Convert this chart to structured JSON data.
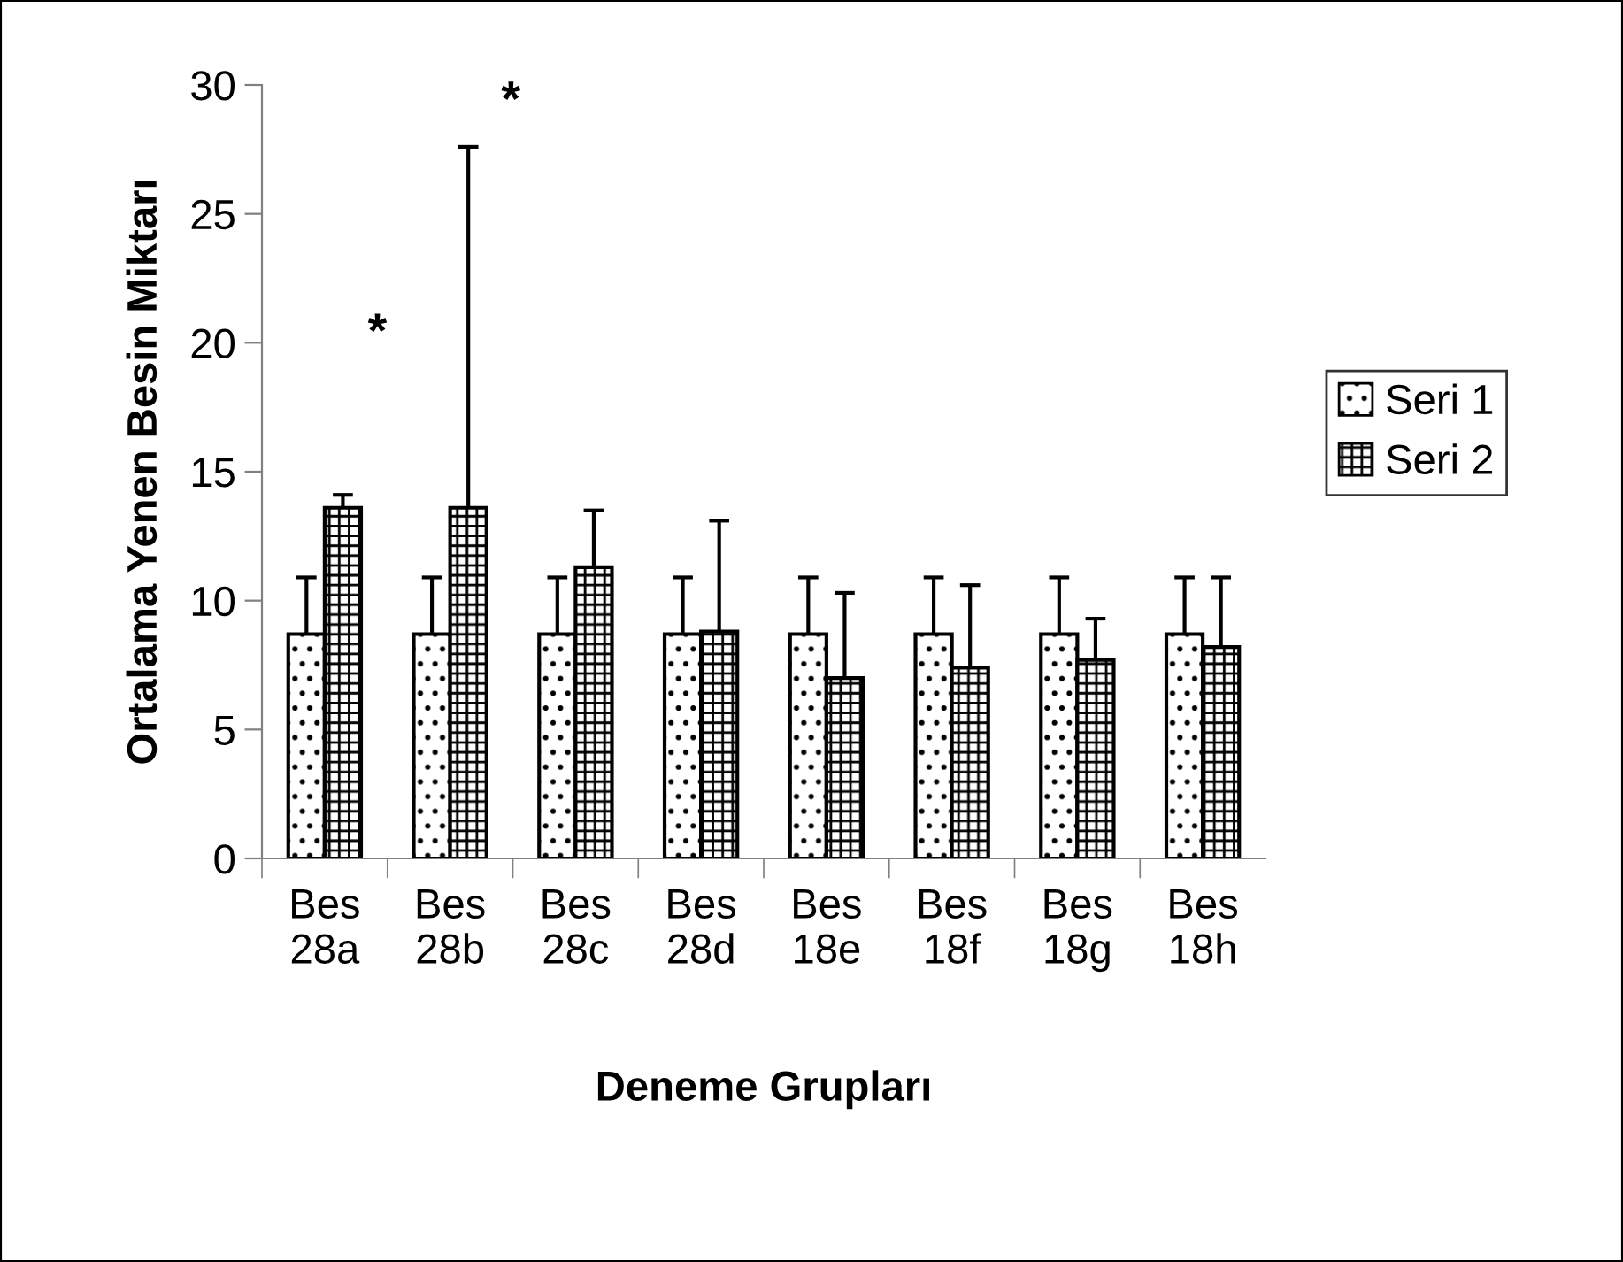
{
  "chart_data": {
    "type": "bar",
    "xlabel": "Deneme Grupları",
    "ylabel": "Ortalama Yenen Besin Miktarı",
    "categories": [
      "Bes\n28a",
      "Bes\n28b",
      "Bes\n28c",
      "Bes\n28d",
      "Bes\n18e",
      "Bes\n18f",
      "Bes\n18g",
      "Bes\n18h"
    ],
    "series": [
      {
        "name": "Seri 1",
        "color": "#000000",
        "values": [
          8.7,
          8.7,
          8.7,
          8.7,
          8.7,
          8.7,
          8.7,
          8.7
        ],
        "errors": [
          [
            8.7,
            10.9
          ],
          [
            8.7,
            10.9
          ],
          [
            8.7,
            10.9
          ],
          [
            8.7,
            10.9
          ],
          [
            8.7,
            10.9
          ],
          [
            8.7,
            10.9
          ],
          [
            8.7,
            10.9
          ],
          [
            8.7,
            10.9
          ]
        ]
      },
      {
        "name": "Seri 2",
        "color": "#000000",
        "values": [
          13.6,
          13.6,
          11.3,
          8.8,
          7.0,
          7.4,
          7.7,
          8.2
        ],
        "errors": [
          [
            13.6,
            14.1
          ],
          [
            13.6,
            27.6
          ],
          [
            11.3,
            13.5
          ],
          [
            8.8,
            13.1
          ],
          [
            7.0,
            10.3
          ],
          [
            7.4,
            10.6
          ],
          [
            7.7,
            9.3
          ],
          [
            8.2,
            10.9
          ]
        ]
      }
    ],
    "ylim": [
      0,
      30
    ],
    "yticks": [
      0,
      5,
      10,
      15,
      20,
      25,
      30
    ],
    "grid": false,
    "legend": "right",
    "annotations": [
      "*",
      "*"
    ]
  }
}
